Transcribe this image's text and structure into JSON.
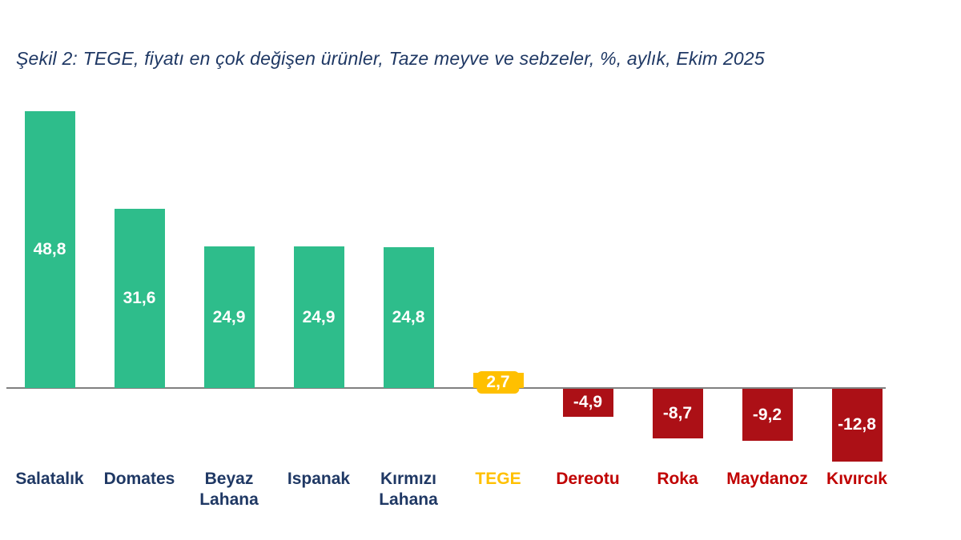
{
  "title": "Şekil 2: TEGE, fiyatı en çok değişen ürünler, Taze meyve ve sebzeler, %, aylık, Ekim 2025",
  "chart_data": {
    "type": "bar",
    "title": "Şekil 2: TEGE, fiyatı en çok değişen ürünler, Taze meyve ve sebzeler, %, aylık, Ekim 2025",
    "categories": [
      "Salatalık",
      "Domates",
      "Beyaz Lahana",
      "Ispanak",
      "Kırmızı Lahana",
      "TEGE",
      "Dereotu",
      "Roka",
      "Maydanoz",
      "Kıvırcık"
    ],
    "values": [
      48.8,
      31.6,
      24.9,
      24.9,
      24.8,
      2.7,
      -4.9,
      -8.7,
      -9.2,
      -12.8
    ],
    "value_labels": [
      "48,8",
      "31,6",
      "24,9",
      "24,9",
      "24,8",
      "2,7",
      "-4,9",
      "-8,7",
      "-9,2",
      "-12,8"
    ],
    "value_label_style": [
      "inside",
      "inside",
      "inside",
      "inside",
      "inside",
      "badge",
      "inside",
      "inside",
      "inside",
      "inside"
    ],
    "bar_color_keys": [
      "green",
      "green",
      "green",
      "green",
      "green",
      "gold",
      "red",
      "red",
      "red",
      "red"
    ],
    "category_label_color_keys": [
      "navy",
      "navy",
      "navy",
      "navy",
      "navy",
      "gold",
      "label_red",
      "label_red",
      "label_red",
      "label_red"
    ],
    "palette": {
      "green": "#2EBD8B",
      "gold": "#FFC000",
      "red": "#AC1016",
      "navy": "#1F3864",
      "label_red": "#C00000",
      "baseline": "#808080",
      "value_text": "#FFFFFF"
    },
    "ylim": [
      -15,
      50
    ],
    "xlabel": "",
    "ylabel": "",
    "grid": false,
    "legend": false,
    "baseline": 0
  }
}
